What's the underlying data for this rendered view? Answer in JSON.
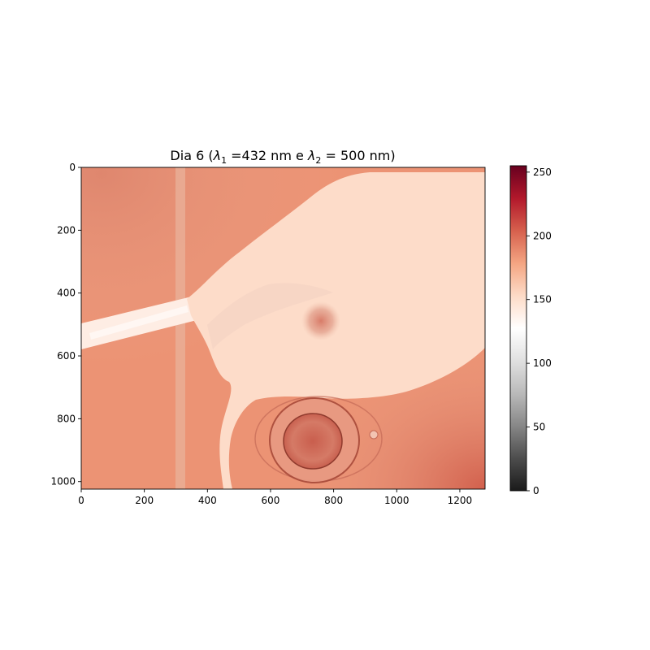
{
  "chart_data": {
    "type": "heatmap",
    "title": {
      "prefix": "Dia 6 (",
      "sym1": "λ",
      "sub1": "1",
      "mid": " =432 nm e ",
      "sym2": "λ",
      "sub2": "2",
      "suffix": " = 500 nm)"
    },
    "image_size": [
      1280,
      1024
    ],
    "xlim": [
      0,
      1280
    ],
    "ylim": [
      1024,
      0
    ],
    "x_ticks": [
      0,
      200,
      400,
      600,
      800,
      1000,
      1200
    ],
    "y_ticks": [
      0,
      200,
      400,
      600,
      800,
      1000
    ],
    "colorbar": {
      "colormap": "RdGy_r",
      "range": [
        0,
        255
      ],
      "ticks": [
        0,
        50,
        100,
        150,
        200,
        250
      ],
      "stops": [
        "#1a1a1a",
        "#4d4d4d",
        "#878787",
        "#bababa",
        "#e0e0e0",
        "#ffffff",
        "#fddbc7",
        "#f4a582",
        "#d6604d",
        "#b2182b",
        "#67001f"
      ]
    },
    "scene": {
      "background_value": 185,
      "body_value": 152,
      "eye_value": 192,
      "pipette_value": 140,
      "egg_value": 200
    }
  }
}
